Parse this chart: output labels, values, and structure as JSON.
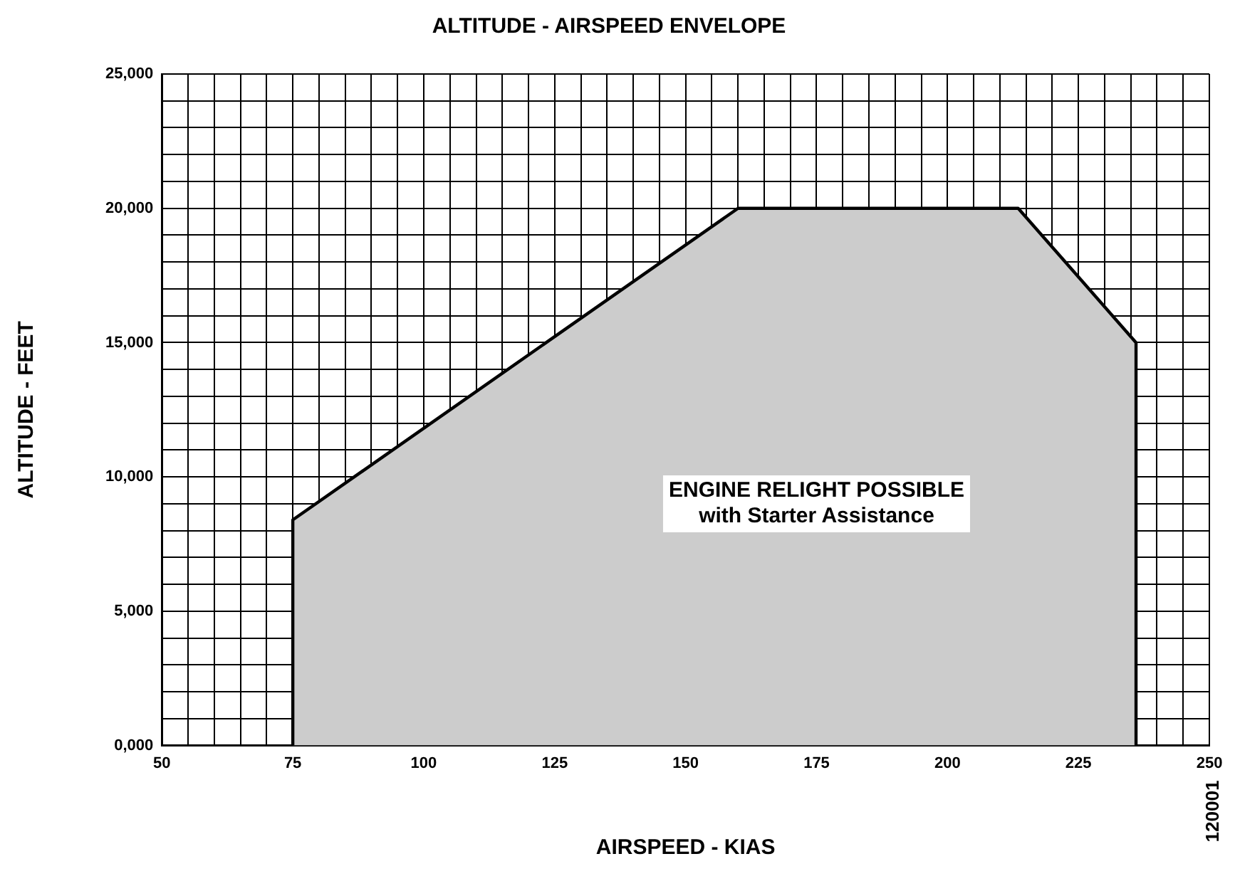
{
  "chart_data": {
    "type": "area",
    "title": "ALTITUDE - AIRSPEED ENVELOPE",
    "xlabel": "AIRSPEED - KIAS",
    "ylabel": "ALTITUDE - FEET",
    "x": [
      75,
      75,
      160,
      213.5,
      236,
      236
    ],
    "series": [
      {
        "color": "#cccccc",
        "values": [
          0,
          8400,
          20000,
          20000,
          15000,
          0
        ]
      }
    ],
    "xlim": [
      50,
      250
    ],
    "xticks": [
      50,
      {
        "value": 55,
        "label": null
      },
      {
        "value": 60,
        "label": null
      },
      {
        "value": 65,
        "label": null
      },
      {
        "value": 70,
        "label": null
      },
      75,
      {
        "value": 80,
        "label": null
      },
      {
        "value": 85,
        "label": null
      },
      {
        "value": 90,
        "label": null
      },
      {
        "value": 95,
        "label": null
      },
      100,
      {
        "value": 105,
        "label": null
      },
      {
        "value": 110,
        "label": null
      },
      {
        "value": 115,
        "label": null
      },
      {
        "value": 120,
        "label": null
      },
      125,
      {
        "value": 130,
        "label": null
      },
      {
        "value": 135,
        "label": null
      },
      {
        "value": 140,
        "label": null
      },
      {
        "value": 145,
        "label": null
      },
      150,
      {
        "value": 155,
        "label": null
      },
      {
        "value": 160,
        "label": null
      },
      {
        "value": 165,
        "label": null
      },
      {
        "value": 170,
        "label": null
      },
      175,
      {
        "value": 180,
        "label": null
      },
      {
        "value": 185,
        "label": null
      },
      {
        "value": 190,
        "label": null
      },
      {
        "value": 195,
        "label": null
      },
      200,
      {
        "value": 205,
        "label": null
      },
      {
        "value": 210,
        "label": null
      },
      {
        "value": 215,
        "label": null
      },
      {
        "value": 220,
        "label": null
      },
      225,
      {
        "value": 230,
        "label": null
      },
      {
        "value": 235,
        "label": null
      },
      {
        "value": 240,
        "label": null
      },
      {
        "value": 245,
        "label": null
      },
      250
    ],
    "ylim": [
      0,
      25000
    ],
    "yticks": [
      {
        "value": 0,
        "label": "0,000"
      },
      {
        "value": 1000,
        "label": null
      },
      {
        "value": 2000,
        "label": null
      },
      {
        "value": 3000,
        "label": null
      },
      {
        "value": 4000,
        "label": null
      },
      {
        "value": 5000,
        "label": "5,000"
      },
      {
        "value": 6000,
        "label": null
      },
      {
        "value": 7000,
        "label": null
      },
      {
        "value": 8000,
        "label": null
      },
      {
        "value": 9000,
        "label": null
      },
      {
        "value": 10000,
        "label": "10,000"
      },
      {
        "value": 11000,
        "label": null
      },
      {
        "value": 12000,
        "label": null
      },
      {
        "value": 13000,
        "label": null
      },
      {
        "value": 14000,
        "label": null
      },
      {
        "value": 15000,
        "label": "15,000"
      },
      {
        "value": 16000,
        "label": null
      },
      {
        "value": 17000,
        "label": null
      },
      {
        "value": 18000,
        "label": null
      },
      {
        "value": 19000,
        "label": null
      },
      {
        "value": 20000,
        "label": "20,000"
      },
      {
        "value": 21000,
        "label": null
      },
      {
        "value": 22000,
        "label": null
      },
      {
        "value": 23000,
        "label": null
      },
      {
        "value": 24000,
        "label": null
      },
      {
        "value": 25000,
        "label": "25,000"
      }
    ],
    "annotations": [
      "ENGINE RELIGHT POSSIBLE\nwith Starter Assistance",
      "120001"
    ],
    "grid": true,
    "legend": false,
    "marker": "none",
    "line_style": "solid"
  }
}
